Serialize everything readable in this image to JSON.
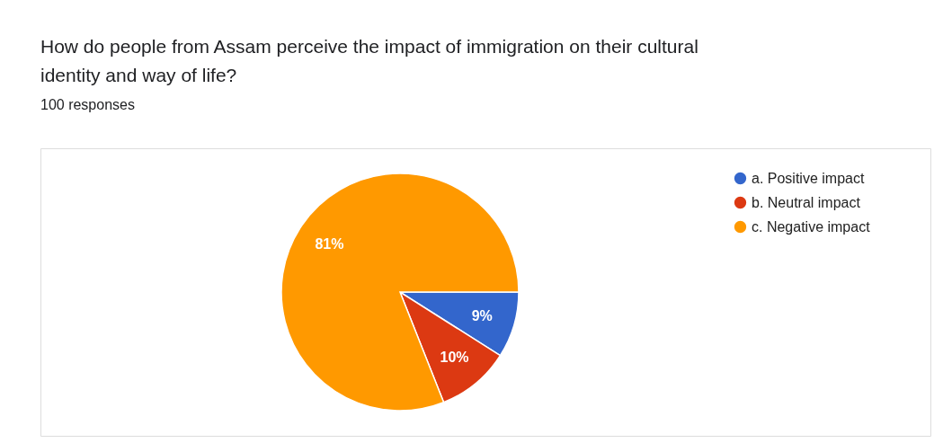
{
  "chart_data": {
    "type": "pie",
    "title": "How do people from Assam perceive the impact of immigration on their cultural identity and way of life?",
    "subtitle": "100 responses",
    "categories": [
      "a. Positive impact",
      "b. Neutral impact",
      "c. Negative impact"
    ],
    "values": [
      9,
      10,
      81
    ],
    "colors": [
      "#3366cc",
      "#dc3912",
      "#ff9900"
    ],
    "value_labels": [
      "9%",
      "10%",
      "81%"
    ],
    "legend": "right"
  }
}
